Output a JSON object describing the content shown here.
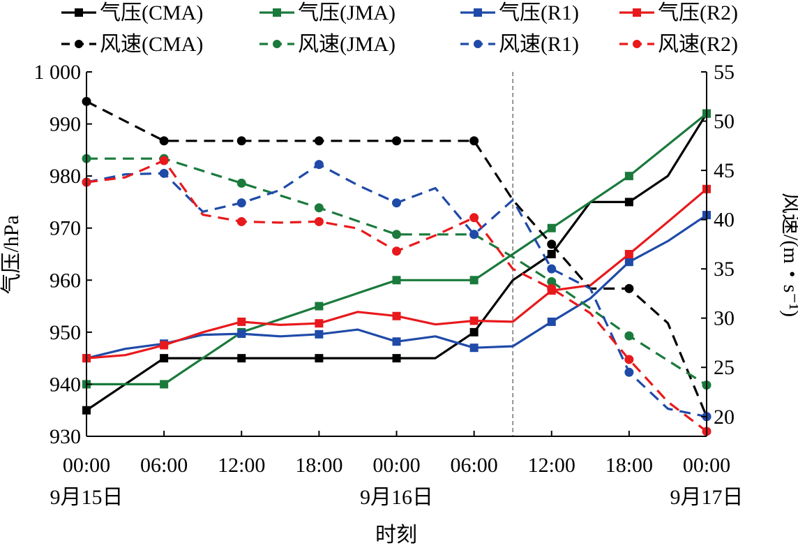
{
  "chart_data": {
    "type": "line",
    "xlabel": "时刻",
    "ylabel_left": "气压/hPa",
    "ylabel_right": "风速/(m・s⁻¹)",
    "ylim_left": [
      930,
      1000
    ],
    "ylim_right": [
      18,
      55
    ],
    "y_left_ticks": [
      930,
      940,
      950,
      960,
      970,
      980,
      990,
      1000
    ],
    "y_left_tick_labels": [
      "930",
      "940",
      "950",
      "960",
      "970",
      "980",
      "990",
      "1 000"
    ],
    "y_right_ticks": [
      20,
      25,
      30,
      35,
      40,
      45,
      50,
      55
    ],
    "y_right_tick_labels": [
      "20",
      "25",
      "30",
      "35",
      "40",
      "45",
      "50",
      "55"
    ],
    "x_range_hours": [
      0,
      48
    ],
    "x_ticks": [
      {
        "hour": 0,
        "time": "00:00",
        "date": "9月15日"
      },
      {
        "hour": 6,
        "time": "06:00",
        "date": ""
      },
      {
        "hour": 12,
        "time": "12:00",
        "date": ""
      },
      {
        "hour": 18,
        "time": "18:00",
        "date": ""
      },
      {
        "hour": 24,
        "time": "00:00",
        "date": "9月16日"
      },
      {
        "hour": 30,
        "time": "06:00",
        "date": ""
      },
      {
        "hour": 36,
        "time": "12:00",
        "date": ""
      },
      {
        "hour": 42,
        "time": "18:00",
        "date": ""
      },
      {
        "hour": 48,
        "time": "00:00",
        "date": "9月17日"
      }
    ],
    "reference_line_hour": 33,
    "grid": false,
    "legend_position": "top",
    "series": [
      {
        "name": "气压(CMA)",
        "axis": "left",
        "color": "#000000",
        "style": "solid",
        "marker": "square",
        "points": [
          [
            0,
            935
          ],
          [
            6,
            945
          ],
          [
            12,
            945
          ],
          [
            18,
            945
          ],
          [
            24,
            945
          ],
          [
            27,
            945
          ],
          [
            30,
            950
          ],
          [
            33,
            960
          ],
          [
            36,
            965
          ],
          [
            39,
            975
          ],
          [
            42,
            975
          ],
          [
            45,
            980
          ],
          [
            48,
            992
          ]
        ],
        "marker_hours": [
          0,
          6,
          12,
          18,
          24,
          30,
          36,
          42,
          48
        ]
      },
      {
        "name": "气压(JMA)",
        "axis": "left",
        "color": "#1a7a3c",
        "style": "solid",
        "marker": "square",
        "points": [
          [
            0,
            940
          ],
          [
            6,
            940
          ],
          [
            12,
            950
          ],
          [
            18,
            955
          ],
          [
            24,
            960
          ],
          [
            30,
            960
          ],
          [
            33,
            965
          ],
          [
            36,
            970
          ],
          [
            39,
            975
          ],
          [
            42,
            980
          ],
          [
            48,
            992
          ]
        ],
        "marker_hours": [
          0,
          6,
          12,
          18,
          24,
          30,
          36,
          42,
          48
        ]
      },
      {
        "name": "气压(R1)",
        "axis": "left",
        "color": "#1f4aa8",
        "style": "solid",
        "marker": "square",
        "points": [
          [
            0,
            945
          ],
          [
            3,
            946.8
          ],
          [
            6,
            947.8
          ],
          [
            9,
            949.5
          ],
          [
            12,
            949.7
          ],
          [
            15,
            949.2
          ],
          [
            18,
            949.6
          ],
          [
            21,
            950.5
          ],
          [
            24,
            948.2
          ],
          [
            27,
            949.2
          ],
          [
            30,
            947
          ],
          [
            33,
            947.3
          ],
          [
            36,
            952
          ],
          [
            39,
            956.5
          ],
          [
            42,
            963.5
          ],
          [
            45,
            967.5
          ],
          [
            48,
            972.5
          ]
        ],
        "marker_hours": [
          0,
          6,
          12,
          18,
          24,
          30,
          36,
          42,
          48
        ]
      },
      {
        "name": "气压(R2)",
        "axis": "left",
        "color": "#e8191c",
        "style": "solid",
        "marker": "square",
        "points": [
          [
            0,
            945
          ],
          [
            3,
            945.6
          ],
          [
            6,
            947.5
          ],
          [
            9,
            950
          ],
          [
            12,
            952
          ],
          [
            15,
            951.4
          ],
          [
            18,
            951.7
          ],
          [
            21,
            953.9
          ],
          [
            24,
            953.1
          ],
          [
            27,
            951.5
          ],
          [
            30,
            952.2
          ],
          [
            33,
            952
          ],
          [
            36,
            958
          ],
          [
            39,
            959
          ],
          [
            42,
            965
          ],
          [
            45,
            971.2
          ],
          [
            48,
            977.5
          ]
        ],
        "marker_hours": [
          0,
          6,
          12,
          18,
          24,
          30,
          36,
          42,
          48
        ]
      },
      {
        "name": "风速(CMA)",
        "axis": "right",
        "color": "#000000",
        "style": "dashed",
        "marker": "circle",
        "points": [
          [
            0,
            52
          ],
          [
            6,
            48
          ],
          [
            12,
            48
          ],
          [
            18,
            48
          ],
          [
            24,
            48
          ],
          [
            30,
            48
          ],
          [
            33,
            42
          ],
          [
            36,
            37.5
          ],
          [
            39,
            33
          ],
          [
            42,
            33
          ],
          [
            45,
            29.5
          ],
          [
            48,
            20
          ]
        ],
        "marker_hours": [
          0,
          6,
          12,
          18,
          24,
          30,
          36,
          42,
          48
        ]
      },
      {
        "name": "风速(JMA)",
        "axis": "right",
        "color": "#1a7a3c",
        "style": "dashed",
        "marker": "circle",
        "points": [
          [
            0,
            46.2
          ],
          [
            6,
            46.2
          ],
          [
            12,
            43.7
          ],
          [
            18,
            41.2
          ],
          [
            24,
            38.5
          ],
          [
            30,
            38.5
          ],
          [
            33,
            36.2
          ],
          [
            36,
            33.7
          ],
          [
            39,
            31
          ],
          [
            42,
            28.2
          ],
          [
            45,
            25.7
          ],
          [
            48,
            23.2
          ]
        ],
        "marker_hours": [
          0,
          6,
          12,
          18,
          24,
          30,
          36,
          42,
          48
        ]
      },
      {
        "name": "风速(R1)",
        "axis": "right",
        "color": "#1f4aa8",
        "style": "dashed",
        "marker": "circle",
        "points": [
          [
            0,
            43.8
          ],
          [
            3,
            44.6
          ],
          [
            6,
            44.7
          ],
          [
            9,
            40.8
          ],
          [
            12,
            41.7
          ],
          [
            15,
            43
          ],
          [
            18,
            45.6
          ],
          [
            21,
            43.5
          ],
          [
            24,
            41.7
          ],
          [
            27,
            43.2
          ],
          [
            30,
            38.5
          ],
          [
            33,
            42
          ],
          [
            36,
            35
          ],
          [
            39,
            33
          ],
          [
            42,
            24.5
          ],
          [
            45,
            20.8
          ],
          [
            48,
            20
          ]
        ],
        "marker_hours": [
          0,
          6,
          12,
          18,
          24,
          30,
          36,
          42,
          48
        ]
      },
      {
        "name": "风速(R2)",
        "axis": "right",
        "color": "#e8191c",
        "style": "dashed",
        "marker": "circle",
        "points": [
          [
            0,
            43.8
          ],
          [
            3,
            44.3
          ],
          [
            6,
            46
          ],
          [
            9,
            40.5
          ],
          [
            12,
            39.8
          ],
          [
            15,
            39.7
          ],
          [
            18,
            39.8
          ],
          [
            21,
            39.1
          ],
          [
            24,
            36.8
          ],
          [
            27,
            38.4
          ],
          [
            30,
            40.2
          ],
          [
            33,
            35
          ],
          [
            36,
            33
          ],
          [
            39,
            30.5
          ],
          [
            42,
            25.8
          ],
          [
            45,
            21.5
          ],
          [
            48,
            18.5
          ]
        ],
        "marker_hours": [
          0,
          6,
          12,
          18,
          24,
          30,
          36,
          42,
          48
        ]
      }
    ]
  }
}
